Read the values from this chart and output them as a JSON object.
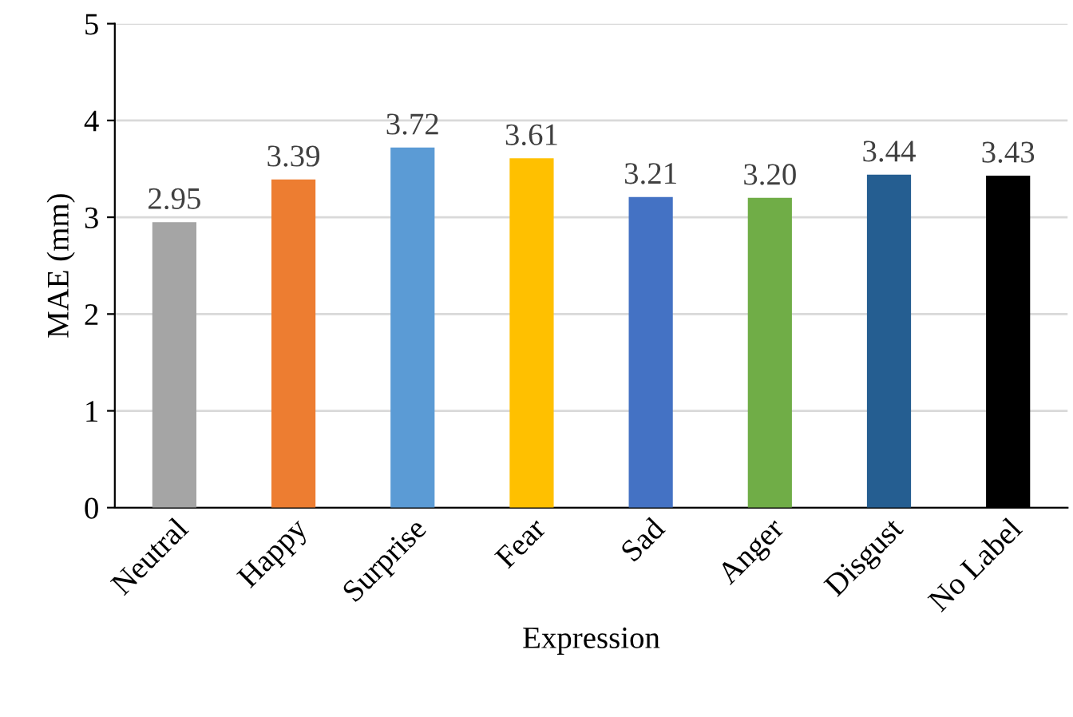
{
  "chart_data": {
    "type": "bar",
    "categories": [
      "Neutral",
      "Happy",
      "Surprise",
      "Fear",
      "Sad",
      "Anger",
      "Disgust",
      "No Label"
    ],
    "values": [
      2.95,
      3.39,
      3.72,
      3.61,
      3.21,
      3.2,
      3.44,
      3.43
    ],
    "value_labels": [
      "2.95",
      "3.39",
      "3.72",
      "3.61",
      "3.21",
      "3.20",
      "3.44",
      "3.43"
    ],
    "colors": [
      "#a5a5a5",
      "#ed7d31",
      "#5b9bd5",
      "#ffc000",
      "#4472c4",
      "#70ad47",
      "#255e91",
      "#000000"
    ],
    "xlabel": "Expression",
    "ylabel": "MAE (mm)",
    "ylim": [
      0,
      5
    ],
    "yticks": [
      0,
      1,
      2,
      3,
      4,
      5
    ],
    "grid": "y"
  }
}
